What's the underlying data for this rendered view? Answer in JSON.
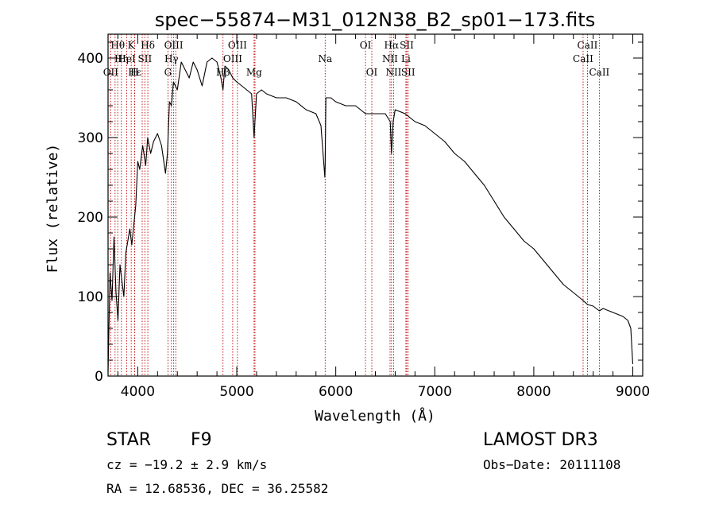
{
  "chart_data": {
    "type": "line",
    "title": "spec−55874−M31_012N38_B2_sp01−173.fits",
    "xlabel": "Wavelength (Å)",
    "ylabel": "Flux (relative)",
    "xlim": [
      3700,
      9100
    ],
    "ylim": [
      0,
      430
    ],
    "xticks": [
      4000,
      5000,
      6000,
      7000,
      8000,
      9000
    ],
    "yticks": [
      0,
      100,
      200,
      300,
      400
    ],
    "series": [
      {
        "name": "spectrum",
        "x": [
          3700,
          3720,
          3740,
          3760,
          3780,
          3800,
          3820,
          3840,
          3860,
          3880,
          3900,
          3920,
          3940,
          3960,
          3980,
          4000,
          4020,
          4050,
          4080,
          4100,
          4130,
          4160,
          4200,
          4240,
          4280,
          4300,
          4320,
          4340,
          4360,
          4400,
          4440,
          4480,
          4520,
          4560,
          4600,
          4650,
          4700,
          4750,
          4800,
          4840,
          4861,
          4880,
          4920,
          4960,
          5000,
          5050,
          5100,
          5150,
          5175,
          5200,
          5250,
          5300,
          5400,
          5500,
          5600,
          5700,
          5800,
          5850,
          5890,
          5893,
          5900,
          5950,
          6000,
          6100,
          6200,
          6300,
          6400,
          6500,
          6550,
          6563,
          6580,
          6600,
          6700,
          6800,
          6900,
          7000,
          7100,
          7200,
          7300,
          7400,
          7500,
          7600,
          7700,
          7800,
          7900,
          8000,
          8100,
          8200,
          8300,
          8400,
          8498,
          8542,
          8600,
          8662,
          8700,
          8800,
          8900,
          8950,
          8980,
          9000
        ],
        "values": [
          5,
          130,
          95,
          175,
          105,
          70,
          140,
          120,
          100,
          155,
          170,
          185,
          165,
          190,
          215,
          270,
          260,
          290,
          265,
          300,
          280,
          295,
          305,
          290,
          255,
          280,
          345,
          340,
          370,
          360,
          395,
          385,
          375,
          395,
          385,
          365,
          395,
          400,
          395,
          375,
          360,
          390,
          385,
          375,
          370,
          365,
          360,
          355,
          300,
          355,
          360,
          355,
          350,
          350,
          345,
          335,
          330,
          315,
          250,
          265,
          350,
          350,
          345,
          340,
          340,
          330,
          330,
          330,
          320,
          280,
          320,
          335,
          330,
          320,
          315,
          305,
          295,
          280,
          270,
          255,
          240,
          220,
          200,
          185,
          170,
          160,
          145,
          130,
          115,
          105,
          95,
          90,
          88,
          82,
          85,
          80,
          75,
          70,
          60,
          15
        ]
      }
    ],
    "spectral_lines": [
      {
        "label": "Hθ",
        "wavelength": 3798,
        "row": 0
      },
      {
        "label": "K",
        "wavelength": 3934,
        "row": 0
      },
      {
        "label": "Hδ",
        "wavelength": 4102,
        "row": 0
      },
      {
        "label": "OIII",
        "wavelength": 4363,
        "row": 0
      },
      {
        "label": "OIII",
        "wavelength": 5007,
        "row": 0
      },
      {
        "label": "OI",
        "wavelength": 6300,
        "row": 0
      },
      {
        "label": "Hα",
        "wavelength": 6563,
        "row": 0
      },
      {
        "label": "SII",
        "wavelength": 6717,
        "row": 0
      },
      {
        "label": "CaII",
        "wavelength": 8542,
        "row": 0
      },
      {
        "label": "Hη",
        "wavelength": 3835,
        "row": 1
      },
      {
        "label": "HeI",
        "wavelength": 3889,
        "row": 1
      },
      {
        "label": "SII",
        "wavelength": 4072,
        "row": 1
      },
      {
        "label": "Hγ",
        "wavelength": 4340,
        "row": 1
      },
      {
        "label": "OIII",
        "wavelength": 4959,
        "row": 1
      },
      {
        "label": "Na",
        "wavelength": 5893,
        "row": 1
      },
      {
        "label": "NII",
        "wavelength": 6548,
        "row": 1
      },
      {
        "label": "Li",
        "wavelength": 6708,
        "row": 1
      },
      {
        "label": "CaII",
        "wavelength": 8498,
        "row": 1
      },
      {
        "label": "OII",
        "wavelength": 3727,
        "row": 2
      },
      {
        "label": "Hε",
        "wavelength": 3970,
        "row": 2
      },
      {
        "label": "H",
        "wavelength": 3969,
        "row": 2
      },
      {
        "label": "G",
        "wavelength": 4305,
        "row": 2
      },
      {
        "label": "Hβ",
        "wavelength": 4861,
        "row": 2
      },
      {
        "label": "Mg",
        "wavelength": 5175,
        "row": 2
      },
      {
        "label": "OI",
        "wavelength": 6364,
        "row": 2
      },
      {
        "label": "NII",
        "wavelength": 6584,
        "row": 2
      },
      {
        "label": "SII",
        "wavelength": 6731,
        "row": 2
      },
      {
        "label": "CaII",
        "wavelength": 8662,
        "row": 2
      }
    ],
    "extra_line_markers": [
      3771,
      4045,
      4384,
      5184
    ]
  },
  "info": {
    "object_class": "STAR",
    "subclass": "F9",
    "survey": "LAMOST DR3",
    "cz": "cz = −19.2 ± 2.9 km/s",
    "obs_date": "Obs−Date: 20111108",
    "radec": "RA =  12.68536, DEC =  36.25582"
  },
  "colors": {
    "line_marker": "#c00000",
    "spectrum": "#000000",
    "axes": "#000000"
  }
}
